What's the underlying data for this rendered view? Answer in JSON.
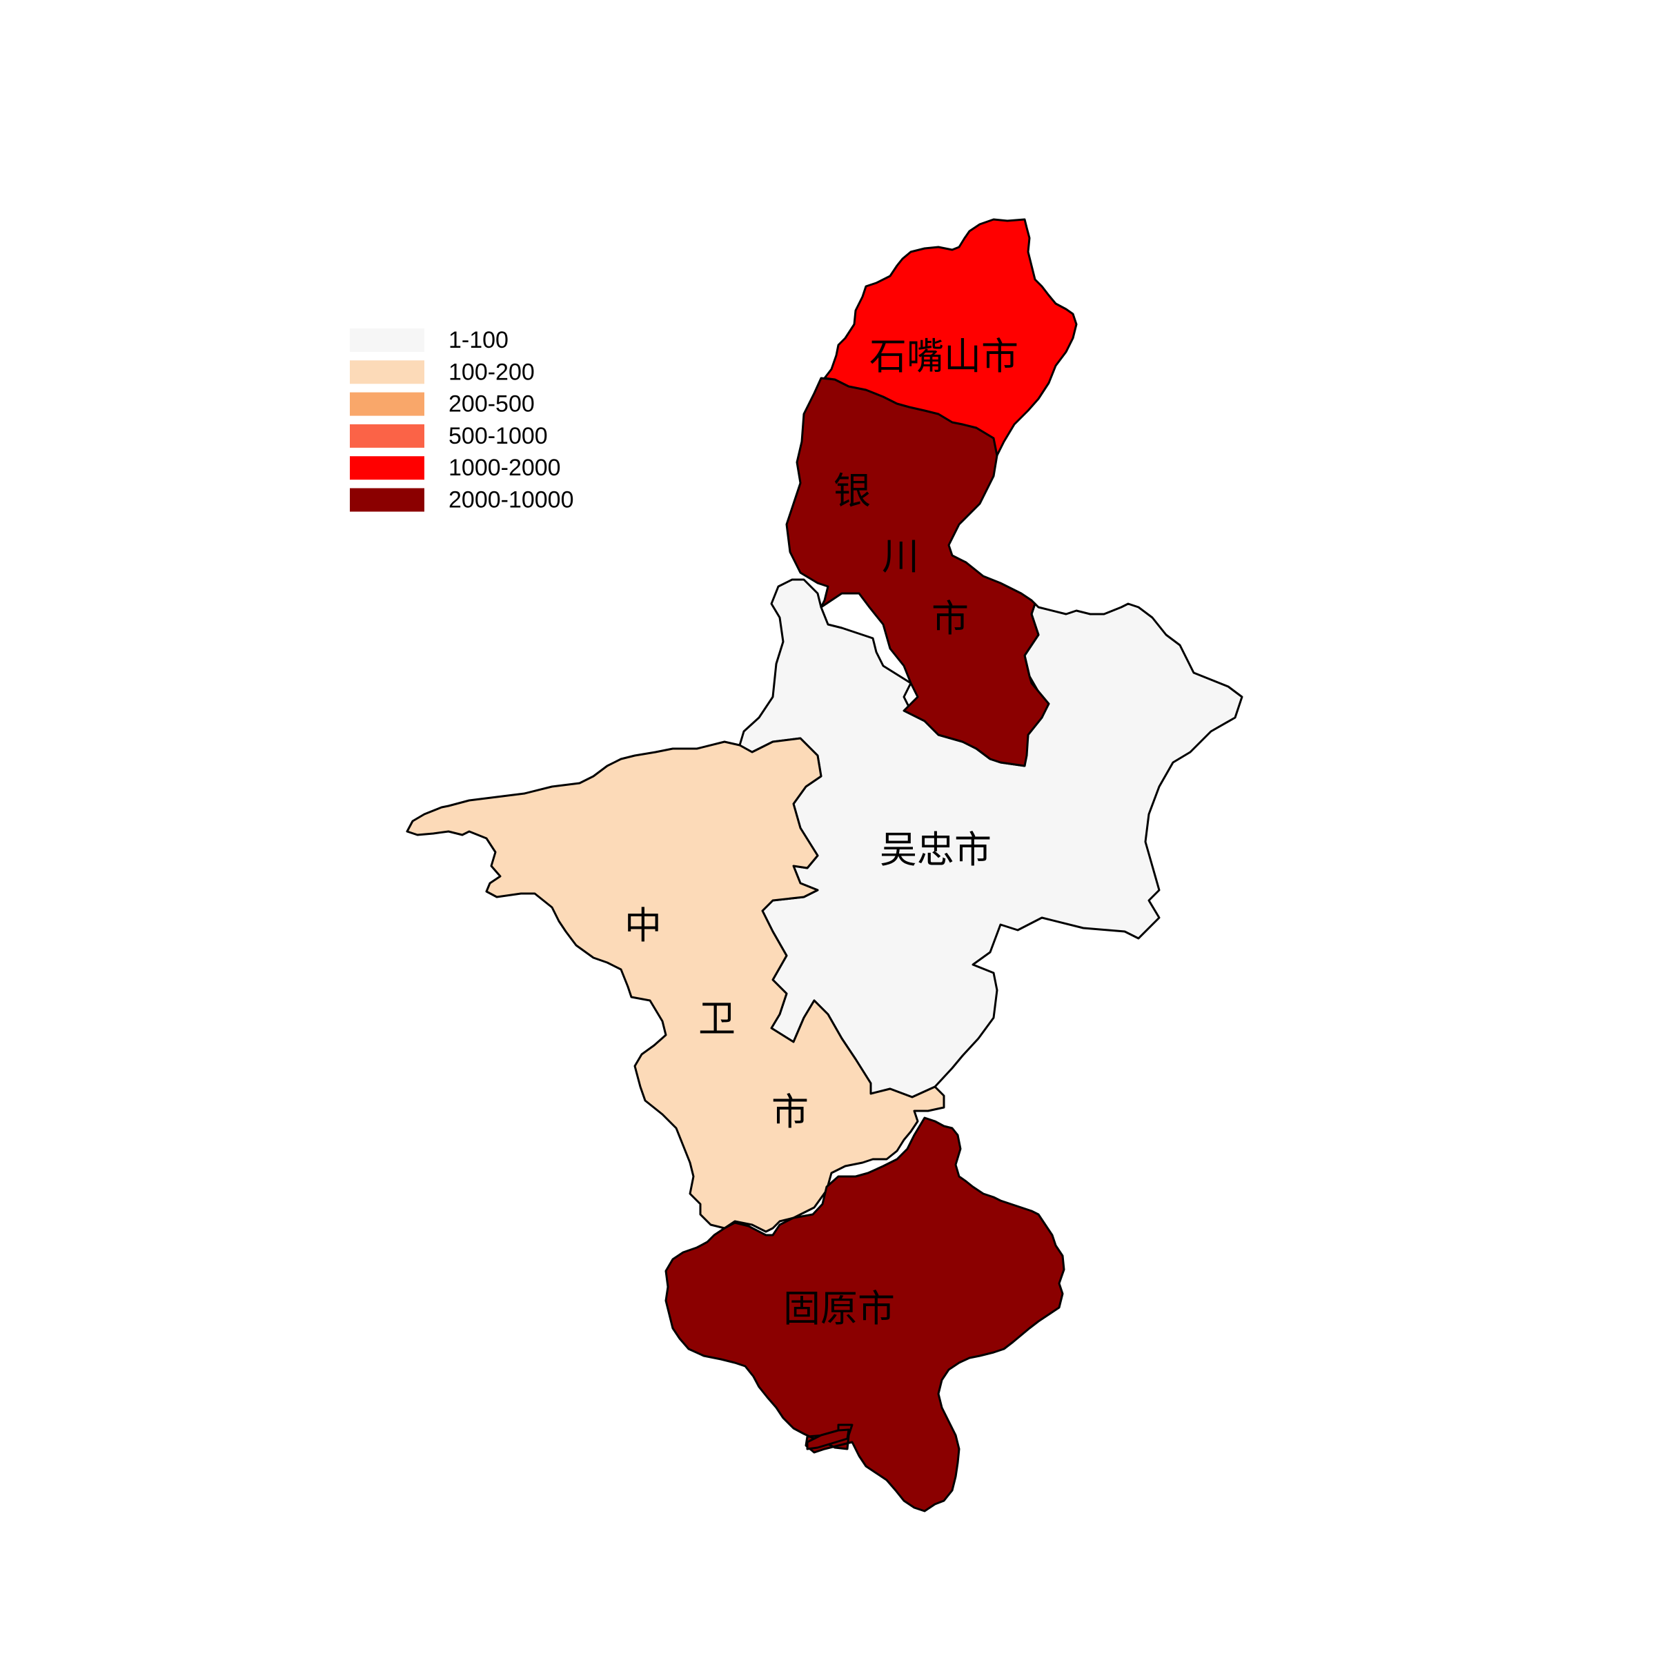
{
  "legend": {
    "items": [
      {
        "label": "1-100",
        "color": "#f6f6f6"
      },
      {
        "label": "100-200",
        "color": "#fcdab8"
      },
      {
        "label": "200-500",
        "color": "#f9a76a"
      },
      {
        "label": "500-1000",
        "color": "#fb6347"
      },
      {
        "label": "1000-2000",
        "color": "#ff0000"
      },
      {
        "label": "2000-10000",
        "color": "#8b0000"
      }
    ]
  },
  "regions": {
    "shizuishan": {
      "name": "石嘴山市",
      "chars": [
        "石嘴山市"
      ],
      "range": "1000-2000",
      "color": "#ff0000"
    },
    "yinchuan": {
      "name": "银川市",
      "chars": [
        "银",
        "川",
        "市"
      ],
      "range": "2000-10000",
      "color": "#8b0000"
    },
    "wuzhong": {
      "name": "吴忠市",
      "chars": [
        "吴忠市"
      ],
      "range": "1-100",
      "color": "#f6f6f6"
    },
    "zhongwei": {
      "name": "中卫市",
      "chars": [
        "中",
        "卫",
        "市"
      ],
      "range": "100-200",
      "color": "#fcdab8"
    },
    "guyuan": {
      "name": "固原市",
      "chars": [
        "固原市"
      ],
      "range": "2000-10000",
      "color": "#8b0000"
    }
  }
}
